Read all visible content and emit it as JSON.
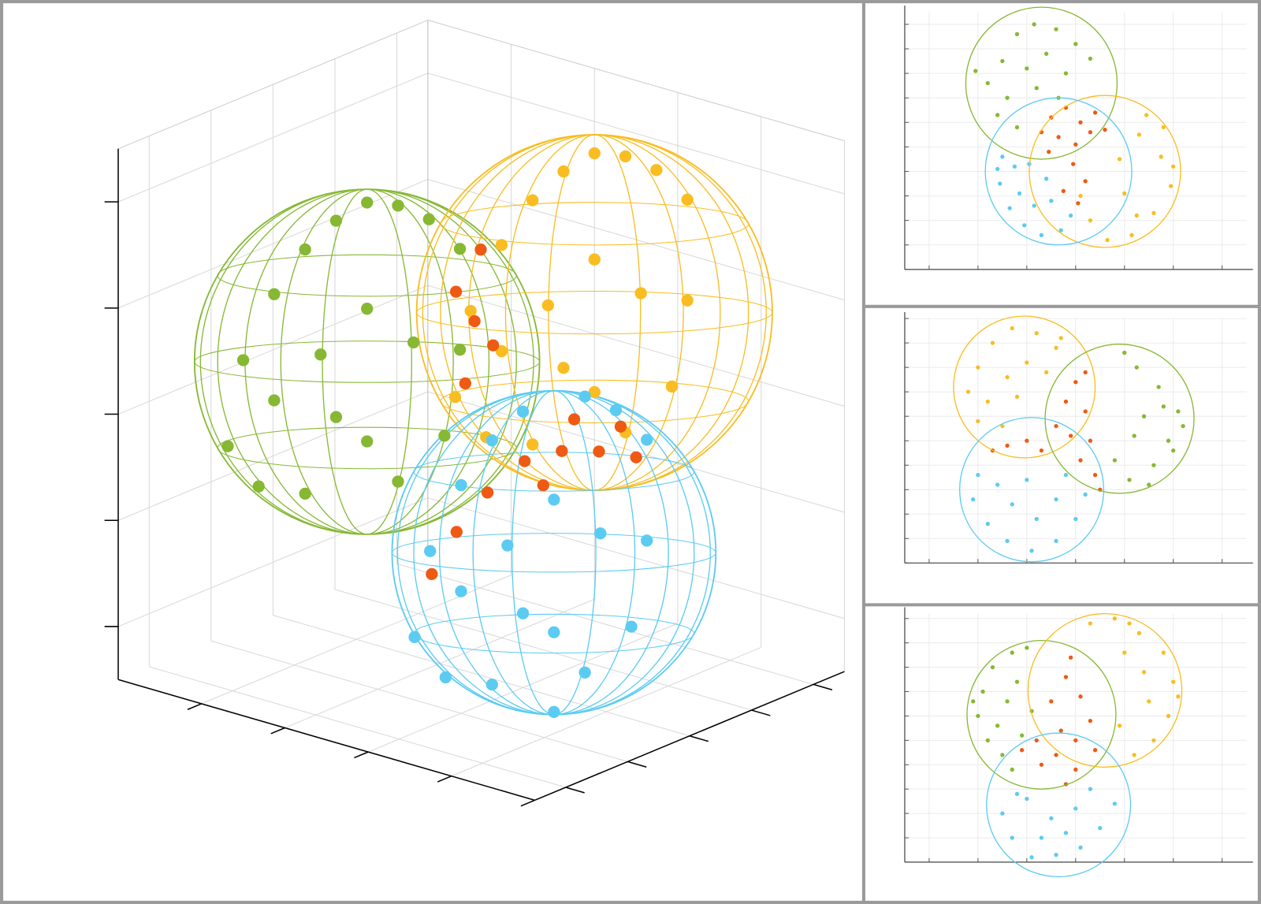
{
  "chart_data": [
    {
      "type": "scatter3d",
      "xlim": [
        0,
        10
      ],
      "ylim": [
        0,
        10
      ],
      "zlim": [
        0,
        10
      ],
      "xticks": [
        2,
        4,
        6,
        8,
        10
      ],
      "yticks": [
        1,
        3,
        5,
        7,
        9
      ],
      "zticks": [
        1,
        3,
        5,
        7,
        9
      ],
      "grid": true,
      "spheres": [
        {
          "color": "#86b833",
          "center": [
            3,
            4,
            5.7
          ],
          "radius": 3.25
        },
        {
          "color": "#f9bd22",
          "center": [
            4,
            10,
            5.4
          ],
          "radius": 3.35
        },
        {
          "color": "#5ccbf2",
          "center": [
            6,
            6,
            2.3
          ],
          "radius": 3.05
        }
      ],
      "series": [
        {
          "color": "#86b833",
          "x": [
            3,
            3,
            3,
            3,
            3,
            3,
            3,
            3,
            3,
            3,
            3,
            3,
            3,
            3,
            3,
            3,
            3,
            3,
            3,
            3
          ],
          "y": [
            0,
            1,
            2,
            3,
            4,
            5,
            6,
            7,
            -0.5,
            1,
            2.5,
            4,
            5.5,
            7,
            0.5,
            2,
            4,
            5,
            6.5,
            3
          ],
          "z": [
            6.7,
            7.7,
            8.3,
            8.6,
            8.7,
            8.4,
            7.9,
            7.1,
            5.2,
            5.7,
            6.2,
            6.7,
            5.7,
            5.2,
            4.2,
            3.7,
            4.2,
            3.2,
            3.7,
            4.9
          ]
        },
        {
          "color": "#f9bd22",
          "x": [
            4,
            4,
            4,
            4,
            4,
            4,
            4,
            4,
            4,
            4,
            4,
            4,
            4,
            4,
            4,
            4,
            4,
            4,
            4,
            4
          ],
          "y": [
            6,
            7,
            8,
            9,
            10,
            11,
            12,
            13,
            5.5,
            7,
            8.5,
            10,
            11.5,
            13,
            6.5,
            8,
            10,
            11,
            12.5,
            9
          ],
          "z": [
            6.4,
            7.4,
            8,
            8.3,
            8.4,
            8.1,
            7.6,
            6.8,
            4.9,
            5.4,
            5.9,
            6.4,
            5.4,
            4.9,
            3.9,
            3.4,
            3.9,
            2.9,
            3.4,
            4.6
          ]
        },
        {
          "color": "#ee5a14",
          "x": [
            3.5,
            3.5,
            3.5,
            3.5,
            3.5,
            5,
            5,
            5,
            5,
            5,
            5,
            5,
            5,
            5,
            5
          ],
          "y": [
            6.8,
            6.2,
            7.4,
            6.5,
            7,
            7.6,
            6.4,
            8.8,
            10,
            5.2,
            4.2,
            7,
            9.5,
            3.4,
            8
          ],
          "z": [
            5.9,
            6.6,
            5.3,
            4.8,
            7.2,
            3.6,
            3.7,
            3.3,
            2.9,
            3.4,
            2.9,
            3.1,
            3.6,
            2.3,
            4.1
          ]
        },
        {
          "color": "#5ccbf2",
          "x": [
            6,
            6,
            6,
            6,
            6,
            6,
            6,
            6,
            6,
            6,
            6,
            6,
            6,
            6,
            6,
            6,
            6,
            6,
            6,
            6
          ],
          "y": [
            2,
            3,
            4,
            5,
            7,
            8,
            9,
            1.5,
            3,
            4.5,
            6,
            7.5,
            9,
            2.5,
            4,
            6,
            7,
            8.5,
            5,
            6
          ],
          "z": [
            3.3,
            4.3,
            4.9,
            5.2,
            5,
            4.5,
            3.7,
            1.8,
            2.3,
            2.8,
            3.3,
            2.3,
            1.8,
            0.8,
            0.3,
            0.8,
            -0.2,
            0.3,
            1.4,
            -0.7
          ]
        }
      ]
    },
    {
      "type": "scatter",
      "xlim": [
        0,
        14
      ],
      "ylim": [
        0,
        10.5
      ],
      "xticks": [
        1,
        3,
        5,
        7,
        9,
        11,
        13
      ],
      "yticks": [
        0,
        1,
        2,
        3,
        4,
        5,
        6,
        7,
        8,
        9,
        10
      ],
      "grid": true,
      "circles": [
        {
          "color": "#86b833",
          "center": [
            5.6,
            7.6
          ],
          "radius": 3.1
        },
        {
          "color": "#f9bd22",
          "center": [
            8.2,
            4.0
          ],
          "radius": 3.1
        },
        {
          "color": "#5ccbf2",
          "center": [
            6.3,
            4.0
          ],
          "radius": 3.0
        }
      ],
      "series": [
        {
          "color": "#86b833",
          "x": [
            4.0,
            4.6,
            5.3,
            6.2,
            7.0,
            3.4,
            4.2,
            5.0,
            5.8,
            6.6,
            7.6,
            3.8,
            4.6,
            5.4,
            6.3,
            2.9
          ],
          "y": [
            8.5,
            9.6,
            10.0,
            9.8,
            9.2,
            7.6,
            7.0,
            8.2,
            8.8,
            8.0,
            8.6,
            6.3,
            5.8,
            7.4,
            7.0,
            8.1
          ]
        },
        {
          "color": "#f9bd22",
          "x": [
            9.6,
            10.5,
            10.9,
            10.2,
            9.3,
            8.3,
            7.6,
            9.0,
            9.9,
            10.6,
            8.8,
            7.2,
            9.5,
            11.0
          ],
          "y": [
            5.5,
            4.6,
            3.4,
            2.3,
            1.4,
            1.2,
            2.0,
            3.1,
            6.3,
            5.8,
            4.5,
            3.0,
            2.2,
            4.2
          ]
        },
        {
          "color": "#5ccbf2",
          "x": [
            4.0,
            3.9,
            4.3,
            4.9,
            5.6,
            6.4,
            4.7,
            5.3,
            6.0,
            4.5,
            5.8,
            6.8,
            3.8,
            5.1
          ],
          "y": [
            4.6,
            3.5,
            2.5,
            1.8,
            1.4,
            1.6,
            3.1,
            2.6,
            2.8,
            4.2,
            3.7,
            2.2,
            4.1,
            4.3
          ]
        },
        {
          "color": "#ee5a14",
          "x": [
            6.0,
            6.6,
            7.2,
            7.8,
            6.3,
            7.0,
            7.6,
            5.6,
            6.9,
            7.4,
            6.5,
            8.2,
            5.9,
            7.1
          ],
          "y": [
            6.2,
            6.6,
            6.0,
            6.4,
            5.4,
            5.1,
            5.6,
            5.6,
            4.3,
            3.6,
            3.2,
            5.7,
            4.8,
            2.7
          ]
        }
      ]
    },
    {
      "type": "scatter",
      "xlim": [
        0,
        14
      ],
      "ylim": [
        0,
        10
      ],
      "xticks": [
        1,
        3,
        5,
        7,
        9,
        11,
        13
      ],
      "yticks": [
        0,
        1,
        2,
        3,
        4,
        5,
        6,
        7,
        8,
        9,
        10
      ],
      "grid": true,
      "circles": [
        {
          "color": "#f9bd22",
          "center": [
            4.9,
            7.2
          ],
          "radius": 2.9
        },
        {
          "color": "#86b833",
          "center": [
            8.8,
            5.9
          ],
          "radius": 3.05
        },
        {
          "color": "#5ccbf2",
          "center": [
            5.2,
            3.0
          ],
          "radius": 2.95
        }
      ],
      "series": [
        {
          "color": "#f9bd22",
          "x": [
            3.0,
            3.6,
            4.4,
            5.4,
            6.2,
            2.6,
            3.4,
            4.2,
            5.0,
            5.8,
            3.0,
            4.0,
            6.4,
            4.6
          ],
          "y": [
            8.0,
            9.0,
            9.6,
            9.4,
            8.8,
            7.0,
            6.6,
            7.6,
            8.2,
            7.8,
            5.8,
            5.6,
            9.2,
            6.8
          ]
        },
        {
          "color": "#86b833",
          "x": [
            9.5,
            10.4,
            11.2,
            10.8,
            10.2,
            9.2,
            9.8,
            10.6,
            11.0,
            9.0,
            8.6,
            10.0,
            9.4,
            11.4
          ],
          "y": [
            8.0,
            7.2,
            6.2,
            5.0,
            4.0,
            3.4,
            6.0,
            6.4,
            4.6,
            8.6,
            4.2,
            3.2,
            5.2,
            5.6
          ]
        },
        {
          "color": "#5ccbf2",
          "x": [
            3.0,
            2.8,
            3.4,
            4.2,
            5.2,
            6.2,
            7.0,
            7.4,
            4.4,
            5.4,
            6.2,
            3.8,
            5.0,
            6.6
          ],
          "y": [
            3.6,
            2.6,
            1.6,
            0.9,
            0.5,
            0.9,
            1.8,
            2.8,
            2.4,
            1.8,
            2.6,
            3.2,
            3.4,
            3.6
          ]
        },
        {
          "color": "#ee5a14",
          "x": [
            6.6,
            7.0,
            7.4,
            6.8,
            7.6,
            7.2,
            7.8,
            4.2,
            5.0,
            5.6,
            3.6,
            6.2,
            7.4,
            8.0
          ],
          "y": [
            6.6,
            7.4,
            6.2,
            5.2,
            5.0,
            4.2,
            3.6,
            4.8,
            5.0,
            4.6,
            4.6,
            5.6,
            7.8,
            3.0
          ]
        }
      ]
    },
    {
      "type": "scatter",
      "xlim": [
        0,
        14
      ],
      "ylim": [
        0,
        10.2
      ],
      "xticks": [
        1,
        3,
        5,
        7,
        9,
        11,
        13
      ],
      "yticks": [
        0,
        1,
        2,
        3,
        4,
        5,
        6,
        7,
        8,
        9,
        10
      ],
      "grid": true,
      "circles": [
        {
          "color": "#86b833",
          "center": [
            5.6,
            6.05
          ],
          "radius": 3.05
        },
        {
          "color": "#f9bd22",
          "center": [
            8.2,
            7.05
          ],
          "radius": 3.15
        },
        {
          "color": "#5ccbf2",
          "center": [
            6.3,
            2.35
          ],
          "radius": 2.95
        }
      ],
      "series": [
        {
          "color": "#86b833",
          "x": [
            3.2,
            3.6,
            4.4,
            3.0,
            3.4,
            4.0,
            4.2,
            4.6,
            3.8,
            5.0,
            4.8,
            2.8,
            5.2,
            4.4
          ],
          "y": [
            7.0,
            8.0,
            8.6,
            6.0,
            5.0,
            4.4,
            6.6,
            7.4,
            5.6,
            8.8,
            5.2,
            6.6,
            6.2,
            3.8
          ]
        },
        {
          "color": "#f9bd22",
          "x": [
            7.6,
            8.6,
            9.6,
            10.6,
            11.0,
            10.8,
            10.2,
            9.4,
            9.8,
            9.0,
            10.0,
            8.8,
            11.2,
            9.2
          ],
          "y": [
            9.8,
            10.0,
            9.4,
            8.6,
            7.4,
            6.0,
            5.0,
            4.4,
            7.8,
            8.6,
            6.6,
            5.6,
            6.8,
            9.8
          ]
        },
        {
          "color": "#5ccbf2",
          "x": [
            4.0,
            4.4,
            5.2,
            6.2,
            7.2,
            8.0,
            8.6,
            5.0,
            6.0,
            7.0,
            5.6,
            7.6,
            4.6,
            6.6
          ],
          "y": [
            2.0,
            1.0,
            0.2,
            0.3,
            0.6,
            1.4,
            2.4,
            2.6,
            1.8,
            2.2,
            1.0,
            3.0,
            2.8,
            1.2
          ]
        },
        {
          "color": "#ee5a14",
          "x": [
            6.0,
            6.6,
            7.2,
            6.4,
            7.0,
            7.6,
            6.2,
            5.6,
            7.0,
            4.8,
            6.8,
            7.8,
            5.4,
            6.6
          ],
          "y": [
            6.6,
            7.6,
            6.8,
            5.4,
            5.0,
            5.8,
            4.4,
            4.0,
            3.8,
            4.6,
            8.4,
            4.6,
            5.0,
            3.2
          ]
        }
      ]
    }
  ]
}
